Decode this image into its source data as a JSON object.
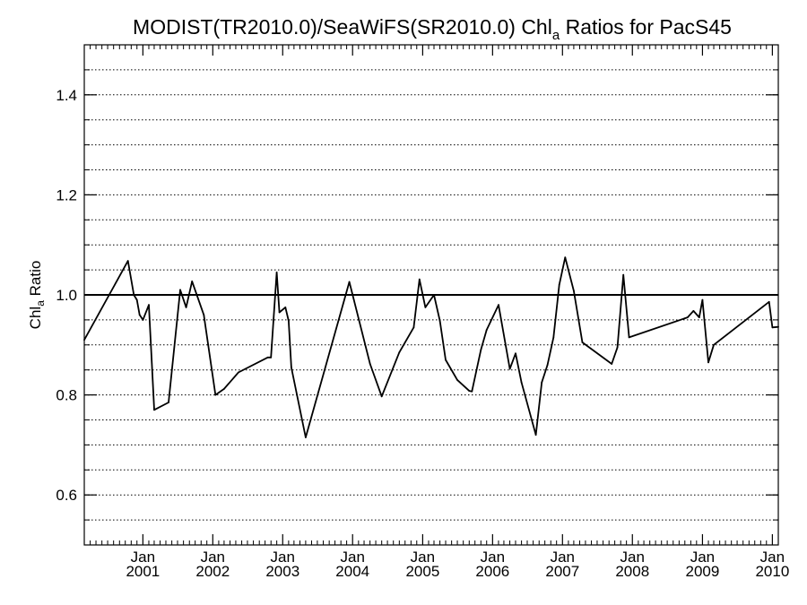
{
  "chart_data": {
    "type": "line",
    "title": {
      "main": "MODIST(TR2010.0)/SeaWiFS(SR2010.0)  Chl",
      "subscript": "a",
      "suffix": " Ratios for PacS45"
    },
    "ylabel": {
      "main": "Chl",
      "subscript": "a",
      "suffix": " Ratio"
    },
    "ylim": [
      0.5,
      1.5
    ],
    "xlim": [
      "2000-03-01",
      "2010-02-01"
    ],
    "y_ticks": [
      {
        "value": 0.6,
        "label": "0.6"
      },
      {
        "value": 0.8,
        "label": "0.8"
      },
      {
        "value": 1.0,
        "label": "1.0"
      },
      {
        "value": 1.2,
        "label": "1.2"
      },
      {
        "value": 1.4,
        "label": "1.4"
      }
    ],
    "y_minor_step": 0.05,
    "grid": "horizontal dotted",
    "reference_line": 1.0,
    "x_ticks": [
      {
        "date": "2001-01-01",
        "line1": "Jan",
        "line2": "2001"
      },
      {
        "date": "2002-01-01",
        "line1": "Jan",
        "line2": "2002"
      },
      {
        "date": "2003-01-01",
        "line1": "Jan",
        "line2": "2003"
      },
      {
        "date": "2004-01-01",
        "line1": "Jan",
        "line2": "2004"
      },
      {
        "date": "2005-01-01",
        "line1": "Jan",
        "line2": "2005"
      },
      {
        "date": "2006-01-01",
        "line1": "Jan",
        "line2": "2006"
      },
      {
        "date": "2007-01-01",
        "line1": "Jan",
        "line2": "2007"
      },
      {
        "date": "2008-01-01",
        "line1": "Jan",
        "line2": "2008"
      },
      {
        "date": "2009-01-01",
        "line1": "Jan",
        "line2": "2009"
      },
      {
        "date": "2010-01-01",
        "line1": "Jan",
        "line2": "2010"
      }
    ],
    "series": [
      {
        "x": [
          "2000-03-01",
          "2000-10-15",
          "2000-11-15",
          "2000-12-01",
          "2000-12-15",
          "2001-01-01",
          "2001-02-01",
          "2001-03-01",
          "2001-05-15",
          "2001-07-15",
          "2001-08-15",
          "2001-09-15",
          "2001-11-15",
          "2002-01-15",
          "2002-03-01",
          "2002-05-15",
          "2002-10-15",
          "2002-11-01",
          "2002-12-01",
          "2002-12-15",
          "2003-01-15",
          "2003-02-01",
          "2003-02-15",
          "2003-05-01",
          "2003-12-15",
          "2004-04-01",
          "2004-06-01",
          "2004-09-01",
          "2004-11-15",
          "2004-12-15",
          "2005-01-15",
          "2005-03-01",
          "2005-04-01",
          "2005-05-01",
          "2005-07-01",
          "2005-09-01",
          "2005-09-15",
          "2005-11-01",
          "2005-12-01",
          "2006-02-01",
          "2006-04-01",
          "2006-05-01",
          "2006-06-01",
          "2006-08-15",
          "2006-09-15",
          "2006-10-15",
          "2006-11-15",
          "2006-12-15",
          "2007-01-15",
          "2007-03-01",
          "2007-04-15",
          "2007-09-15",
          "2007-10-15",
          "2007-11-15",
          "2007-12-15",
          "2008-10-15",
          "2008-11-15",
          "2008-12-15",
          "2009-01-01",
          "2009-02-01",
          "2009-03-01",
          "2009-12-15",
          "2010-01-01",
          "2010-02-01"
        ],
        "values": [
          0.91,
          1.068,
          1.0,
          0.99,
          0.96,
          0.95,
          0.98,
          0.77,
          0.785,
          1.01,
          0.975,
          1.027,
          0.96,
          0.8,
          0.812,
          0.845,
          0.875,
          0.875,
          1.045,
          0.965,
          0.975,
          0.948,
          0.855,
          0.715,
          1.026,
          0.862,
          0.797,
          0.885,
          0.935,
          1.031,
          0.975,
          1.0,
          0.948,
          0.87,
          0.83,
          0.808,
          0.807,
          0.89,
          0.93,
          0.98,
          0.852,
          0.883,
          0.825,
          0.72,
          0.825,
          0.86,
          0.915,
          1.02,
          1.075,
          1.008,
          0.905,
          0.862,
          0.895,
          1.04,
          0.915,
          0.955,
          0.968,
          0.955,
          0.99,
          0.865,
          0.9,
          0.986,
          0.935,
          0.936
        ]
      }
    ]
  }
}
